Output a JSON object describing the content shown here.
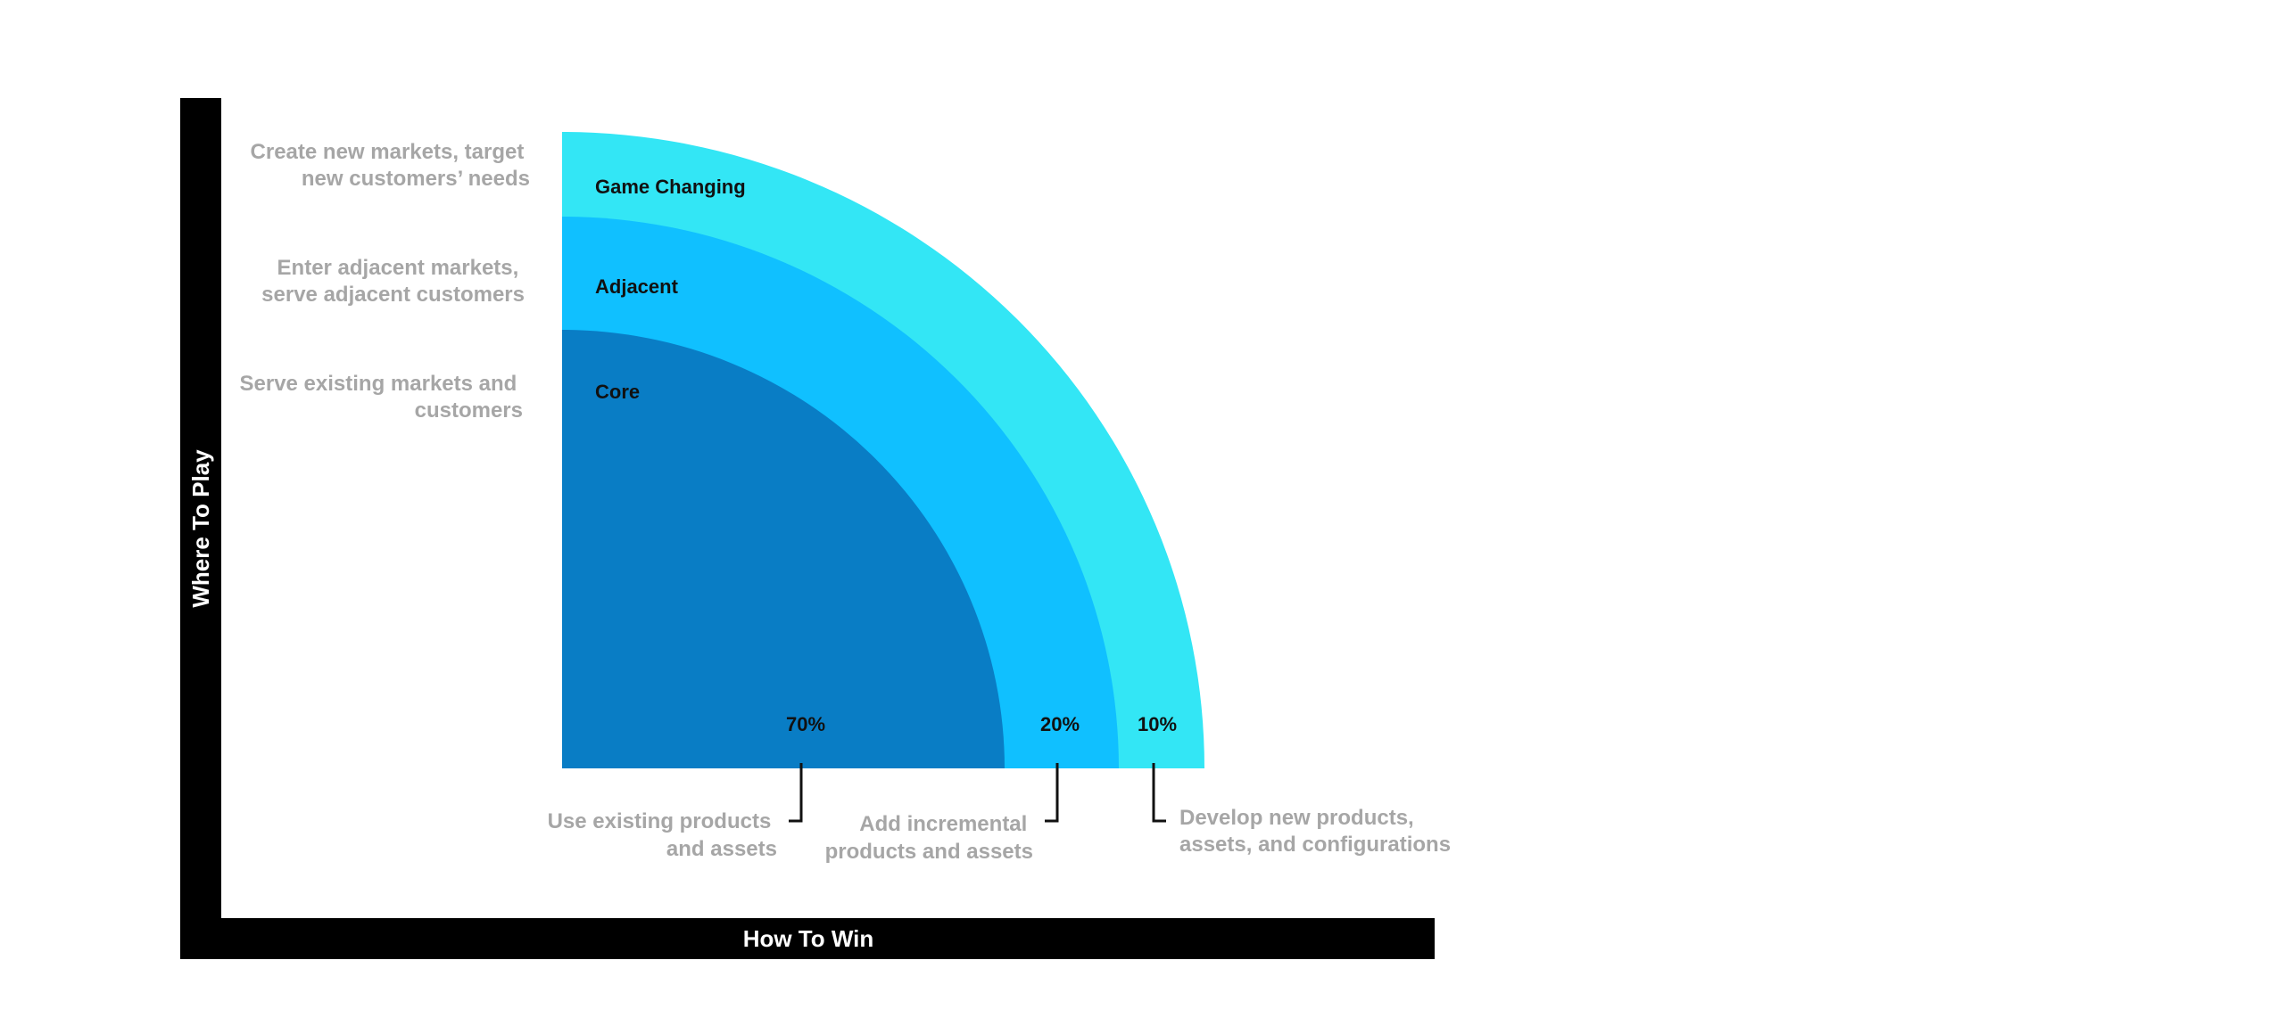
{
  "axes": {
    "y_title": "Where To Play",
    "x_title": "How To Win"
  },
  "rings": [
    {
      "name": "Game Changing",
      "color": "#33e6f5",
      "percent": "10%"
    },
    {
      "name": "Adjacent",
      "color": "#10c0ff",
      "percent": "20%"
    },
    {
      "name": "Core",
      "color": "#097dc5",
      "percent": "70%"
    }
  ],
  "where_descriptions": {
    "game_changing": [
      "Create new markets, target",
      "new customers’ needs"
    ],
    "adjacent": [
      "Enter adjacent markets,",
      "serve adjacent customers"
    ],
    "core": [
      "Serve existing markets and",
      "customers"
    ]
  },
  "how_descriptions": {
    "core": [
      "Use existing products",
      "and assets"
    ],
    "adjacent": [
      "Add incremental",
      "products and assets"
    ],
    "game_changing": [
      "Develop new products,",
      "assets, and configurations"
    ]
  }
}
